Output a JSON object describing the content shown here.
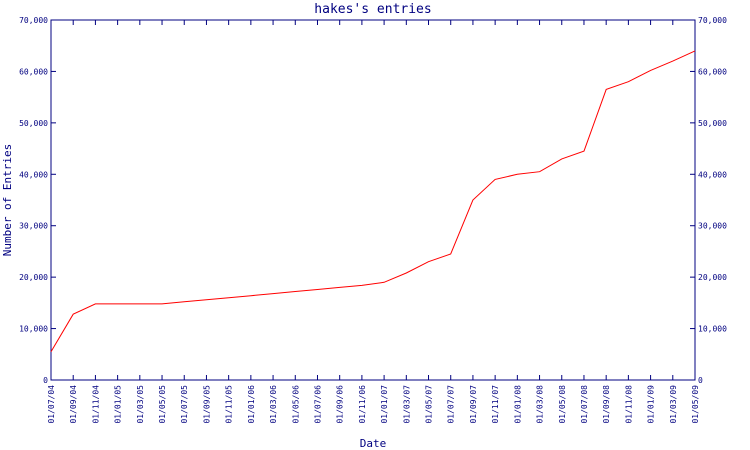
{
  "chart_data": {
    "type": "line",
    "title": "hakes's entries",
    "x_label": "Date",
    "y_label": "Number of Entries",
    "categories": [
      "01/07/04",
      "01/09/04",
      "01/11/04",
      "01/01/05",
      "01/03/05",
      "01/05/05",
      "01/07/05",
      "01/09/05",
      "01/11/05",
      "01/01/06",
      "01/03/06",
      "01/05/06",
      "01/07/06",
      "01/09/06",
      "01/11/06",
      "01/01/07",
      "01/03/07",
      "01/05/07",
      "01/07/07",
      "01/09/07",
      "01/11/07",
      "01/01/08",
      "01/03/08",
      "01/05/08",
      "01/07/08",
      "01/09/08",
      "01/11/08",
      "01/01/09",
      "01/03/09",
      "01/05/09"
    ],
    "series": [
      {
        "name": "Entries",
        "color": "#ff0000",
        "values": [
          5500,
          12800,
          14800,
          14800,
          14800,
          14800,
          15200,
          15600,
          16000,
          16400,
          16800,
          17200,
          17600,
          18000,
          18400,
          19000,
          20800,
          23000,
          24500,
          35000,
          39000,
          40000,
          40500,
          43000,
          44500,
          56500,
          58000,
          60200,
          62000,
          64000
        ]
      }
    ],
    "ylim": [
      0,
      70000
    ],
    "yticks": [
      0,
      {
        "value": 10000,
        "label": "10,000"
      },
      {
        "value": 20000,
        "label": "20,000"
      },
      {
        "value": 30000,
        "label": "30,000"
      },
      {
        "value": 40000,
        "label": "40,000"
      },
      {
        "value": 50000,
        "label": "50,000"
      },
      {
        "value": 60000,
        "label": "60,000"
      },
      {
        "value": 70000,
        "label": "70,000"
      }
    ],
    "axis_color": "#000080"
  }
}
